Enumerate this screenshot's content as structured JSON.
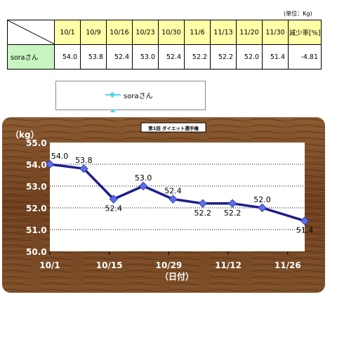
{
  "unit_note": "(単位：Kg)",
  "table": {
    "headers": [
      "10/1",
      "10/9",
      "10/16",
      "10/23",
      "10/30",
      "11/6",
      "11/13",
      "11/20",
      "11/30",
      "減少率[%]"
    ],
    "row_name": "soraさん",
    "values": [
      "54.0",
      "53.8",
      "52.4",
      "53.0",
      "52.4",
      "52.2",
      "52.2",
      "52.0",
      "51.4",
      "-4.81"
    ]
  },
  "legend": {
    "label": "soraさん"
  },
  "colors": {
    "wood": "#7a4a25",
    "line": "#1e1e8c",
    "marker": "#5a6ee6",
    "legend_line": "#4fd6ea"
  },
  "chart_data": {
    "type": "line",
    "title": "第1回 ダイエット選手権",
    "ylabel": "（kg）",
    "xlabel": "（日付）",
    "ylim": [
      50.0,
      55.0
    ],
    "yticks": [
      "50.0",
      "51.0",
      "52.0",
      "53.0",
      "54.0",
      "55.0"
    ],
    "xticks": [
      "10/1",
      "10/15",
      "10/29",
      "11/12",
      "11/26"
    ],
    "x": [
      "10/1",
      "10/9",
      "10/16",
      "10/23",
      "10/30",
      "11/6",
      "11/13",
      "11/20",
      "11/30"
    ],
    "series": [
      {
        "name": "soraさん",
        "values": [
          54.0,
          53.8,
          52.4,
          53.0,
          52.4,
          52.2,
          52.2,
          52.0,
          51.4
        ]
      }
    ]
  }
}
